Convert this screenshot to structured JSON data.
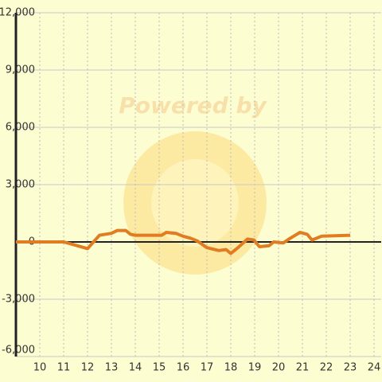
{
  "chart_data": {
    "type": "line",
    "watermark": "Powered by",
    "xlim": [
      9,
      24.3
    ],
    "ylim": [
      -6000,
      12000
    ],
    "xticks": [
      10,
      11,
      12,
      13,
      14,
      15,
      16,
      17,
      18,
      19,
      20,
      21,
      22,
      23,
      24
    ],
    "yticks": [
      {
        "value": -6000,
        "label": "-6,000"
      },
      {
        "value": -3000,
        "label": "-3,000"
      },
      0,
      {
        "value": 3000,
        "label": "3,000"
      },
      {
        "value": 6000,
        "label": "6,000"
      },
      {
        "value": 9000,
        "label": "9,000"
      },
      {
        "value": 12000,
        "label": "12,000"
      }
    ],
    "grid": true,
    "series": [
      {
        "color": "#e07c22",
        "x": [
          9,
          11,
          11.3,
          12,
          12.5,
          13,
          13.25,
          13.6,
          13.8,
          14,
          15.1,
          15.3,
          15.7,
          16,
          16.3,
          16.6,
          17,
          17.5,
          17.8,
          18,
          18.3,
          18.7,
          18.97,
          19.2,
          19.6,
          19.8,
          20.2,
          20.5,
          20.9,
          21.2,
          21.4,
          21.8,
          23
        ],
        "values": [
          0,
          0,
          -100,
          -350,
          350,
          450,
          600,
          600,
          400,
          350,
          350,
          500,
          450,
          300,
          200,
          50,
          -300,
          -450,
          -400,
          -600,
          -300,
          150,
          100,
          -250,
          -200,
          0,
          -50,
          200,
          500,
          400,
          100,
          300,
          350
        ]
      }
    ]
  }
}
